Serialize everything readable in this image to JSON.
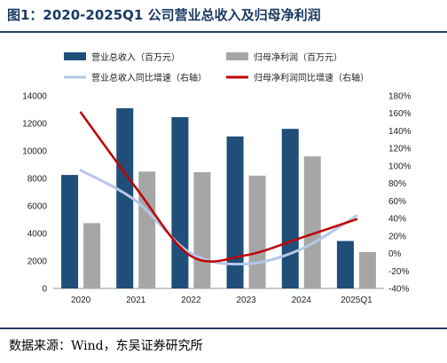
{
  "title": "图1：2020-2025Q1 公司营业总收入及归母净利润",
  "source": "数据来源：Wind，东吴证券研究所",
  "chart_data": {
    "type": "bar",
    "categories": [
      "2020",
      "2021",
      "2022",
      "2023",
      "2024",
      "2025Q1"
    ],
    "series": [
      {
        "name": "营业总收入（百万元）",
        "kind": "bar",
        "axis": "left",
        "color": "#1f4e79",
        "values": [
          8250,
          13100,
          12450,
          11050,
          11600,
          3450
        ]
      },
      {
        "name": "归母净利润（百万元）",
        "kind": "bar",
        "axis": "left",
        "color": "#a6a6a6",
        "values": [
          4750,
          8500,
          8450,
          8200,
          9600,
          2650
        ]
      },
      {
        "name": "营业总收入同比增速（右轴）",
        "kind": "line",
        "axis": "right",
        "color": "#b4c7e7",
        "values": [
          95,
          60,
          0,
          -12,
          5,
          43
        ]
      },
      {
        "name": "归母净利润同比增速（右轴）",
        "kind": "line",
        "axis": "right",
        "color": "#c00000",
        "values": [
          161,
          75,
          -3,
          -2,
          18,
          39
        ]
      }
    ],
    "y_left": {
      "min": 0,
      "max": 14000,
      "step": 2000
    },
    "y_right": {
      "min": -40,
      "max": 180,
      "step": 20,
      "unit": "%"
    },
    "grid": false,
    "legend": "top"
  }
}
